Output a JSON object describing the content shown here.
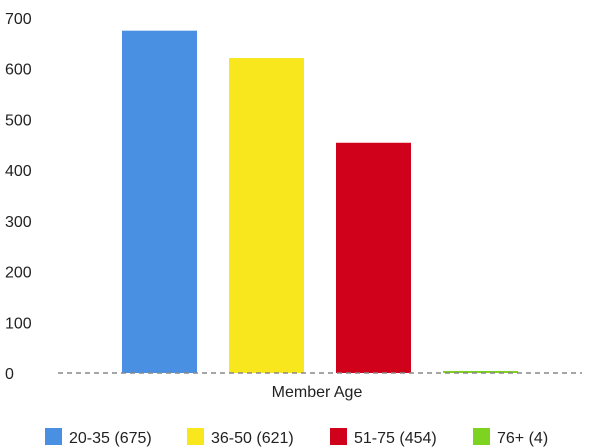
{
  "chart_data": {
    "type": "bar",
    "title": "",
    "xlabel": "Member Age",
    "ylabel": "",
    "ylim": [
      0,
      700
    ],
    "yticks": [
      0,
      100,
      200,
      300,
      400,
      500,
      600,
      700
    ],
    "grid": false,
    "legend_position": "bottom",
    "categories": [
      "20-35",
      "36-50",
      "51-75",
      "76+"
    ],
    "values": [
      675,
      621,
      454,
      4
    ],
    "colors": [
      "#4a90e2",
      "#f8e71c",
      "#d0021b",
      "#7ed321"
    ],
    "legend": [
      "20-35 (675)",
      "36-50 (621)",
      "51-75 (454)",
      "76+ (4)"
    ]
  }
}
